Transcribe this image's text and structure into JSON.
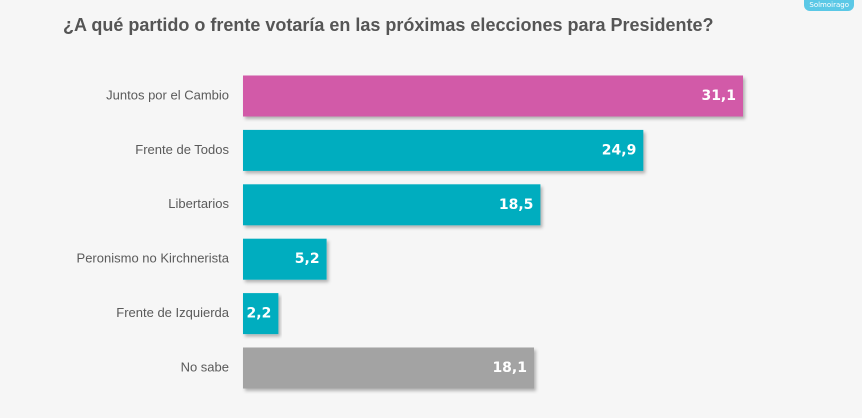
{
  "title": "¿A qué partido o frente votaría en las próximas elecciones para Presidente?",
  "brand": "Solmoirago",
  "colors": {
    "brand_badge": "#5bc8e6"
  },
  "chart_data": {
    "type": "bar",
    "orientation": "horizontal",
    "categories": [
      "Juntos por el Cambio",
      "Frente de Todos",
      "Libertarios",
      "Peronismo no Kirchnerista",
      "Frente de Izquierda",
      "No sabe"
    ],
    "values": [
      31.1,
      24.9,
      18.5,
      5.2,
      2.2,
      18.1
    ],
    "value_labels": [
      "31,1",
      "24,9",
      "18,5",
      "5,2",
      "2,2",
      "18,1"
    ],
    "colors": [
      "#d25aa8",
      "#00adbf",
      "#00adbf",
      "#00adbf",
      "#00adbf",
      "#a3a3a3"
    ],
    "xlim": [
      0,
      31.1
    ],
    "grid": false,
    "legend": "none"
  }
}
